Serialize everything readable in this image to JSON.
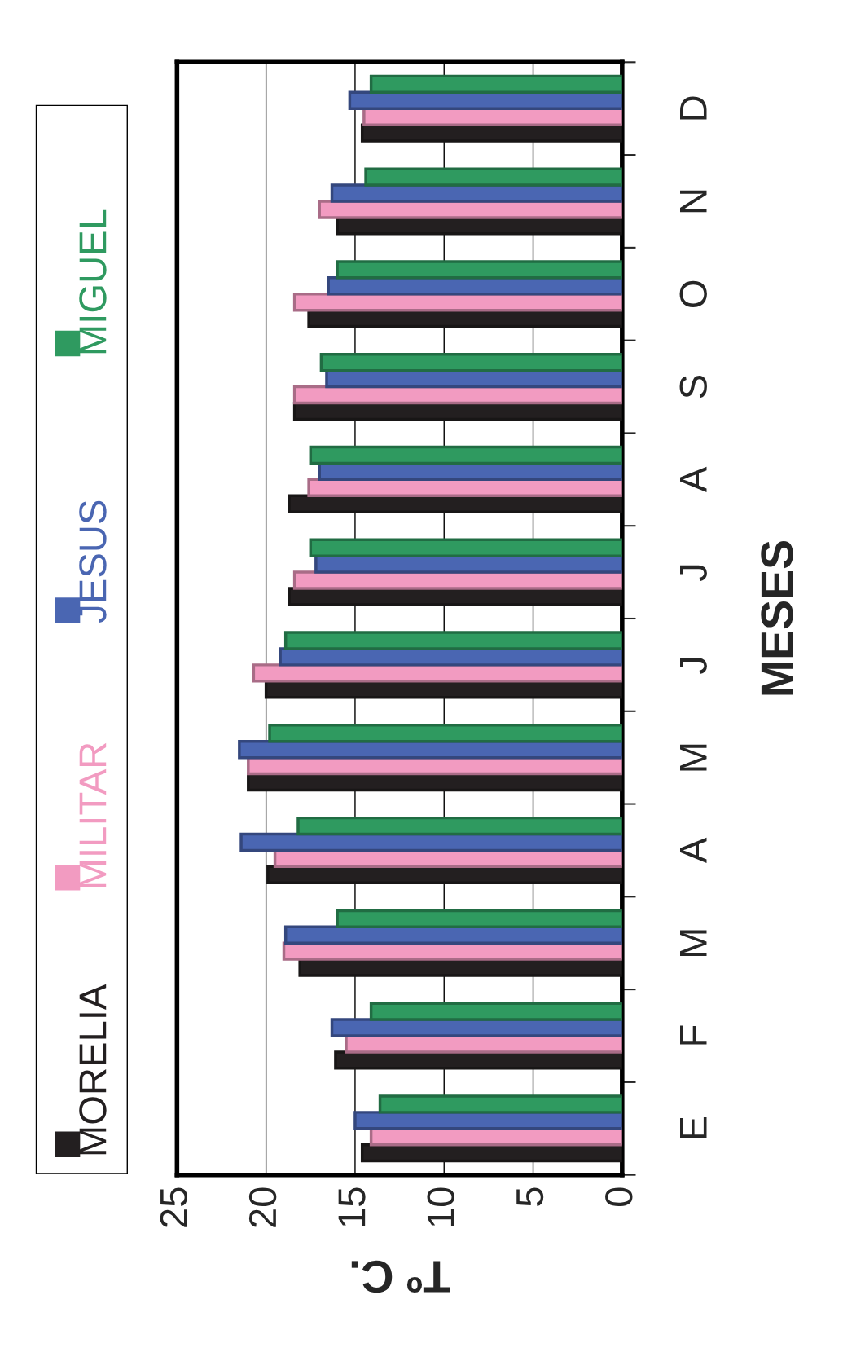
{
  "chart_data": {
    "type": "bar",
    "orientation": "horizontal",
    "xlabel": "Tº C.",
    "ylabel": "MESES",
    "categories": [
      "D",
      "N",
      "O",
      "S",
      "A",
      "J",
      "J",
      "M",
      "A",
      "M",
      "F",
      "E"
    ],
    "series": [
      {
        "name": "MORELIA",
        "color": "#231f20",
        "values": [
          14.6,
          16.0,
          17.6,
          18.4,
          18.7,
          18.7,
          20.0,
          21.0,
          19.9,
          18.1,
          16.1,
          14.6
        ]
      },
      {
        "name": "MILITAR",
        "color": "#f29bc1",
        "values": [
          14.5,
          17.0,
          18.4,
          18.4,
          17.6,
          18.4,
          20.7,
          21.0,
          19.5,
          19.0,
          15.5,
          14.1
        ]
      },
      {
        "name": "JESUS",
        "color": "#4a66b2",
        "values": [
          15.3,
          16.3,
          16.5,
          16.6,
          17.0,
          17.2,
          19.2,
          21.5,
          21.4,
          18.9,
          16.3,
          15.0
        ]
      },
      {
        "name": "MIGUEL",
        "color": "#2f9a60",
        "values": [
          14.1,
          14.4,
          16.0,
          16.9,
          17.5,
          17.5,
          18.9,
          19.8,
          18.2,
          16.0,
          14.1,
          13.6
        ]
      }
    ],
    "xlim": [
      25,
      0
    ],
    "xticks": [
      25,
      20,
      15,
      10,
      5,
      0
    ],
    "grid": "x",
    "legend": "left"
  }
}
